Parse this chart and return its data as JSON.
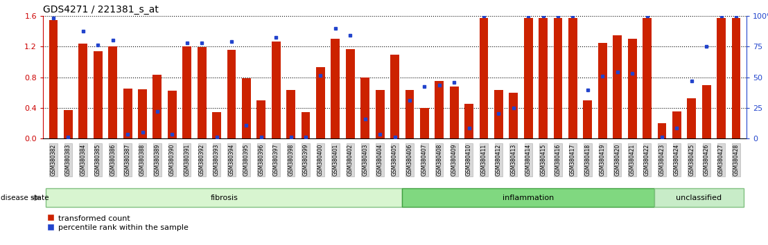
{
  "title": "GDS4271 / 221381_s_at",
  "samples": [
    "GSM380382",
    "GSM380383",
    "GSM380384",
    "GSM380385",
    "GSM380386",
    "GSM380387",
    "GSM380388",
    "GSM380389",
    "GSM380390",
    "GSM380391",
    "GSM380392",
    "GSM380393",
    "GSM380394",
    "GSM380395",
    "GSM380396",
    "GSM380397",
    "GSM380398",
    "GSM380399",
    "GSM380400",
    "GSM380401",
    "GSM380402",
    "GSM380403",
    "GSM380404",
    "GSM380405",
    "GSM380406",
    "GSM380407",
    "GSM380408",
    "GSM380409",
    "GSM380410",
    "GSM380411",
    "GSM380412",
    "GSM380413",
    "GSM380414",
    "GSM380415",
    "GSM380416",
    "GSM380417",
    "GSM380418",
    "GSM380419",
    "GSM380420",
    "GSM380421",
    "GSM380422",
    "GSM380423",
    "GSM380424",
    "GSM380425",
    "GSM380426",
    "GSM380427",
    "GSM380428"
  ],
  "bar_values": [
    1.55,
    0.37,
    1.24,
    1.14,
    1.2,
    0.65,
    0.64,
    0.83,
    0.62,
    1.2,
    1.19,
    0.34,
    1.16,
    0.79,
    0.5,
    1.27,
    0.63,
    0.34,
    0.93,
    1.3,
    1.17,
    0.8,
    0.63,
    1.09,
    0.63,
    0.4,
    0.75,
    0.68,
    0.45,
    1.57,
    0.63,
    0.6,
    1.57,
    1.57,
    1.57,
    1.57,
    0.5,
    1.25,
    1.35,
    1.3,
    1.57,
    0.2,
    0.35,
    0.52,
    0.7,
    1.57,
    1.57
  ],
  "dot_values": [
    1.57,
    0.02,
    1.4,
    1.22,
    1.28,
    0.05,
    0.08,
    0.35,
    0.05,
    1.25,
    1.25,
    0.02,
    1.27,
    0.17,
    0.02,
    1.32,
    0.02,
    0.02,
    0.82,
    1.44,
    1.35,
    0.25,
    0.05,
    0.02,
    0.5,
    0.68,
    0.7,
    0.73,
    0.14,
    1.6,
    0.33,
    0.4,
    1.6,
    1.6,
    1.6,
    1.6,
    0.63,
    0.81,
    0.87,
    0.85,
    1.6,
    0.02,
    0.14,
    0.75,
    1.2,
    1.6,
    1.6
  ],
  "groups": [
    {
      "label": "fibrosis",
      "start": 0,
      "end": 23,
      "color": "#e0f5e0",
      "border": "#7dc87d"
    },
    {
      "label": "inflammation",
      "start": 24,
      "end": 40,
      "color": "#7dc87d",
      "border": "#4aaf4a"
    },
    {
      "label": "unclassified",
      "start": 41,
      "end": 46,
      "color": "#c0e8c0",
      "border": "#7dc87d"
    }
  ],
  "bar_color": "#cc2200",
  "dot_color": "#2244cc",
  "ylim_left": [
    0,
    1.6
  ],
  "ylim_right": [
    0,
    100
  ],
  "yticks_left": [
    0,
    0.4,
    0.8,
    1.2,
    1.6
  ],
  "yticks_right": [
    0,
    25,
    50,
    75,
    100
  ],
  "left_tick_color": "#cc0000",
  "right_tick_color": "#2244cc",
  "disease_state_label": "disease state",
  "legend_entries": [
    "transformed count",
    "percentile rank within the sample"
  ],
  "title_fontsize": 10
}
